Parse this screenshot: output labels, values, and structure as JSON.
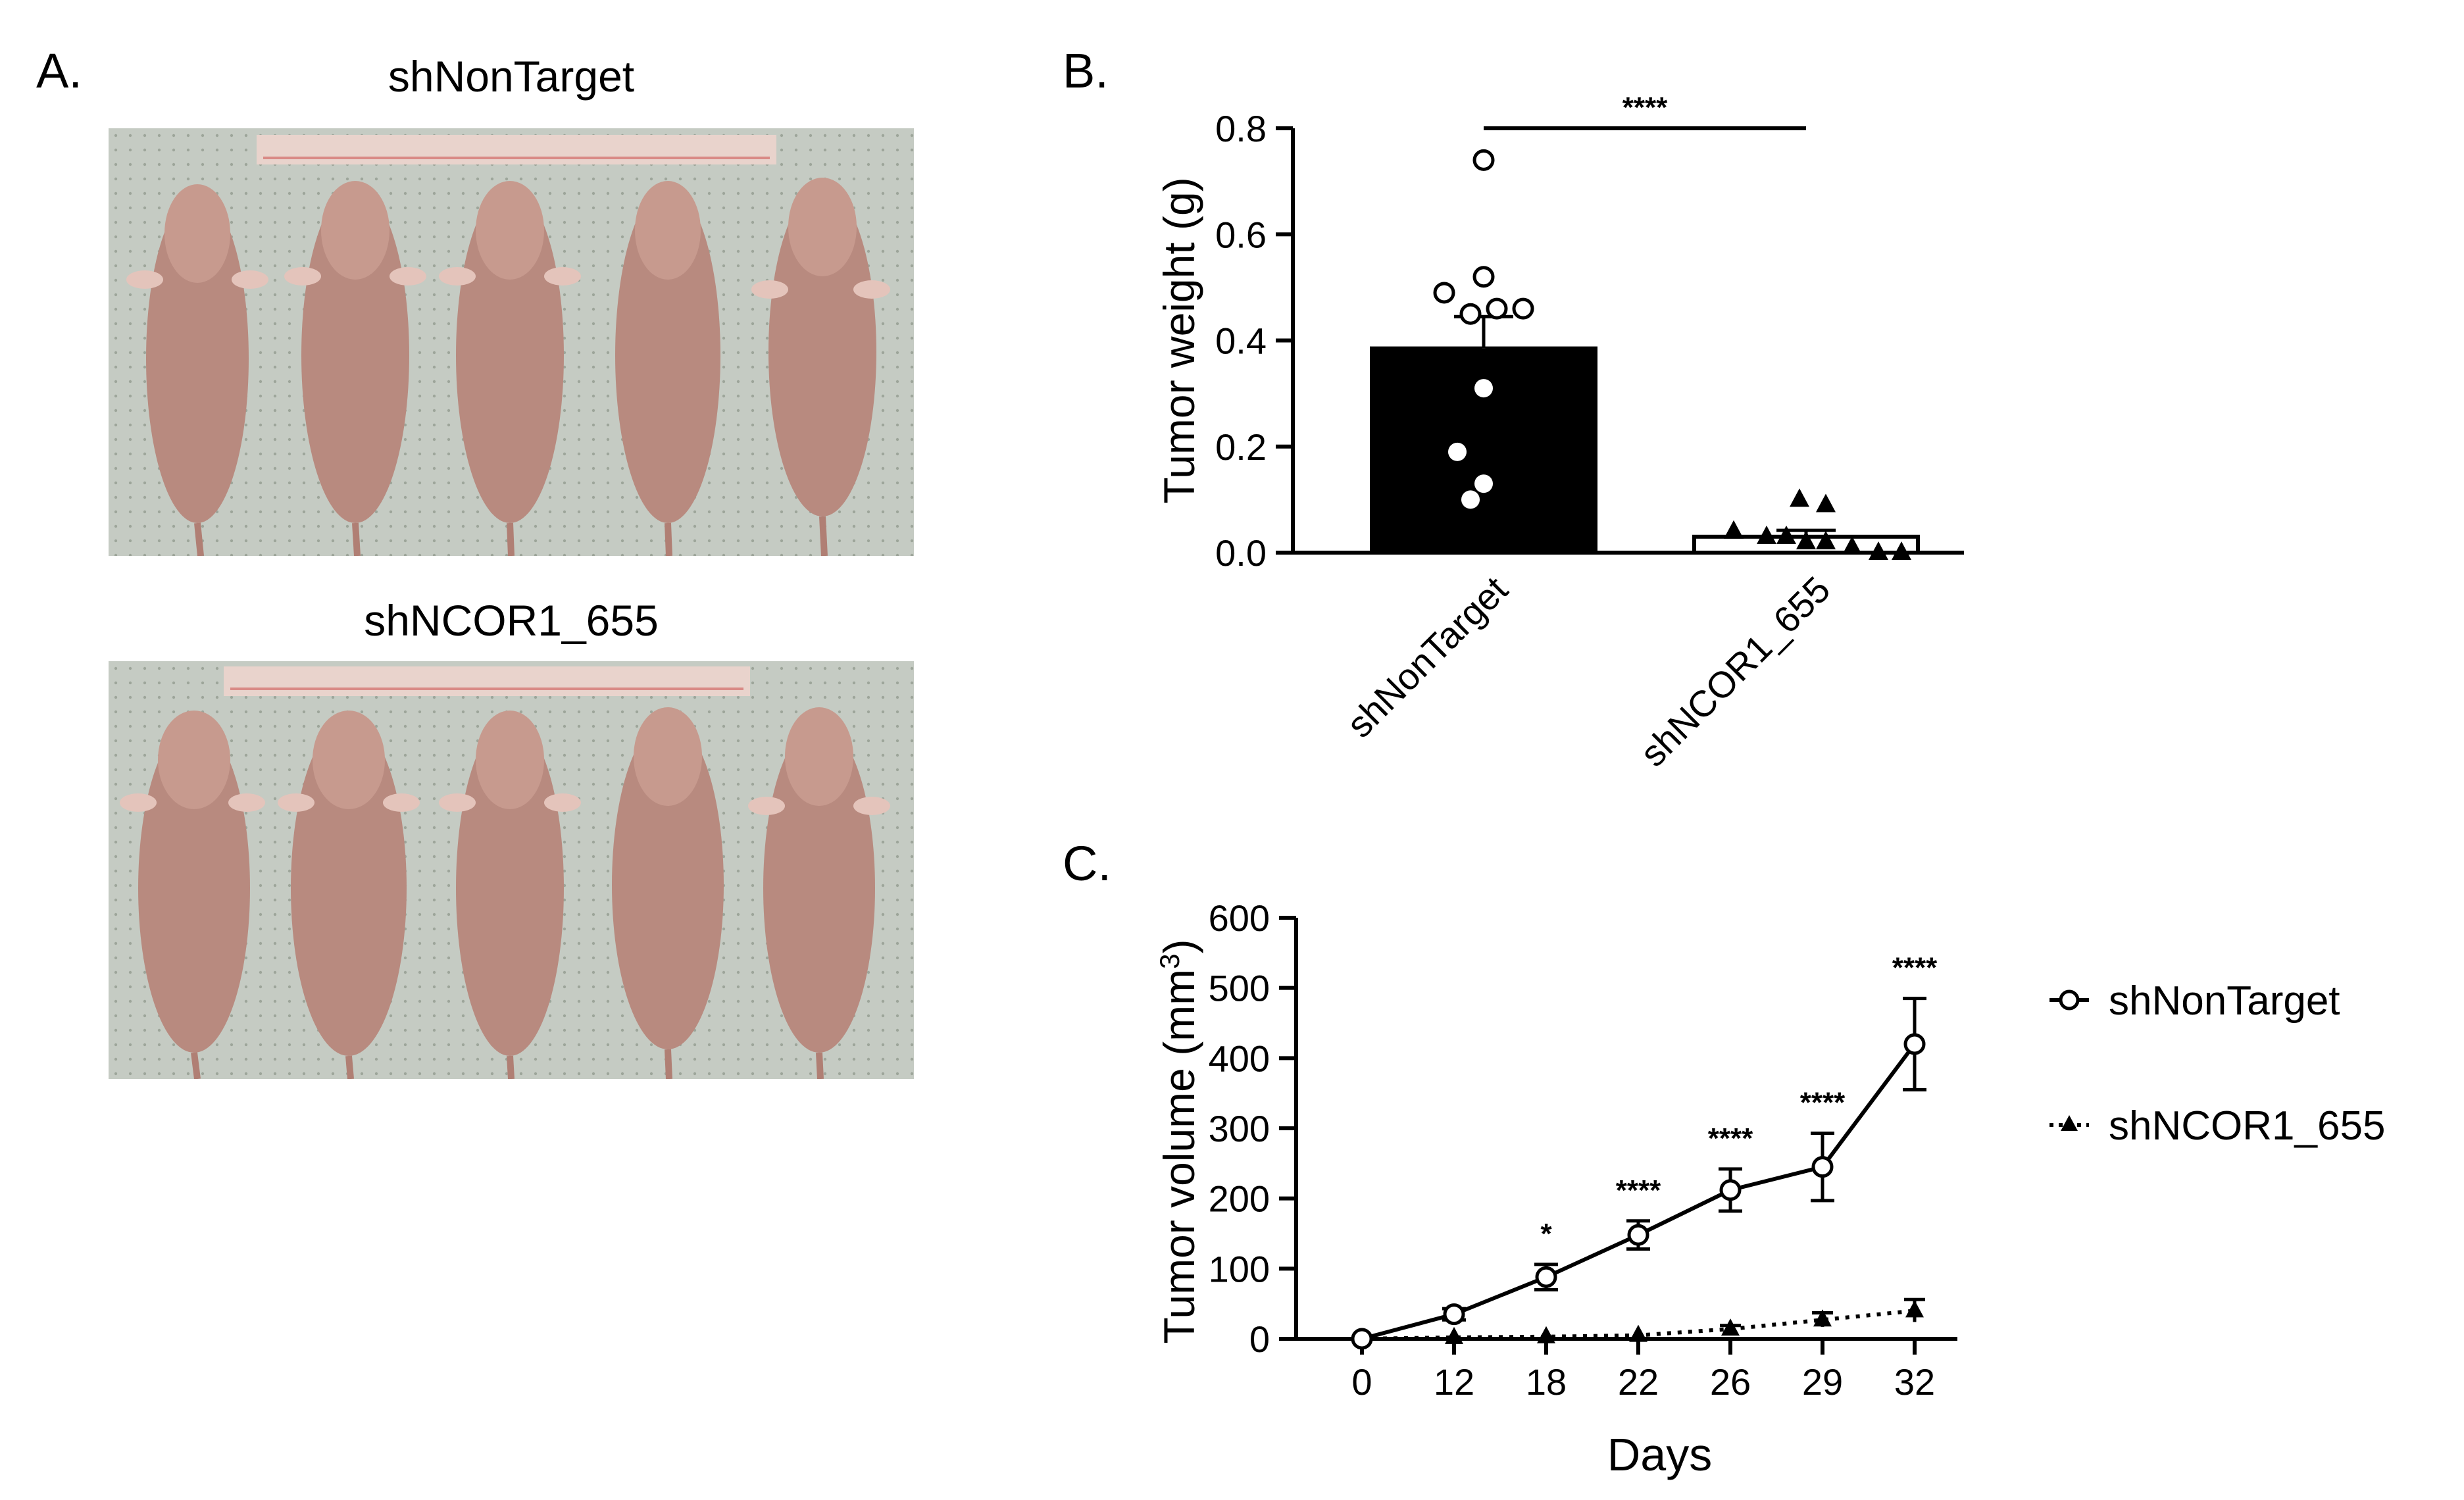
{
  "panelA": {
    "letter": "A.",
    "photos": [
      {
        "label": "shNonTarget"
      },
      {
        "label": "shNCOR1_655"
      }
    ]
  },
  "panelB": {
    "letter": "B.",
    "significance": "****",
    "chart_data": {
      "type": "bar",
      "categories": [
        "shNonTarget",
        "shNCOR1_655"
      ],
      "values": [
        0.385,
        0.03
      ],
      "errors": [
        0.06,
        0.012
      ],
      "ylabel": "Tumor weight (g)",
      "ylim": [
        0,
        0.8
      ],
      "yticks": [
        "0.0",
        "0.2",
        "0.4",
        "0.6",
        "0.8"
      ],
      "points": [
        [
          0.74,
          0.49,
          0.52,
          0.45,
          0.46,
          0.46,
          0.31,
          0.19,
          0.13,
          0.1
        ],
        [
          0.1,
          0.09,
          0.04,
          0.03,
          0.03,
          0.02,
          0.02,
          0.01,
          0.0,
          0.0
        ]
      ]
    }
  },
  "panelC": {
    "letter": "C.",
    "chart_data": {
      "type": "line",
      "x": [
        0,
        12,
        18,
        22,
        26,
        29,
        32
      ],
      "xticks": [
        "0",
        "12",
        "18",
        "22",
        "26",
        "29",
        "32"
      ],
      "xlabel": "Days",
      "ylabel": "Tumor volume (mm",
      "ylabel_sup": "3",
      "ylabel_end": ")",
      "ylim": [
        0,
        600
      ],
      "yticks": [
        "0",
        "100",
        "200",
        "300",
        "400",
        "500",
        "600"
      ],
      "series": [
        {
          "name": "shNonTarget",
          "values": [
            0,
            35,
            88,
            148,
            212,
            245,
            420
          ],
          "errors": [
            0,
            8,
            18,
            20,
            30,
            48,
            65
          ]
        },
        {
          "name": "shNCOR1_655",
          "values": [
            0,
            2,
            3,
            5,
            14,
            27,
            40
          ],
          "errors": [
            0,
            1,
            2,
            3,
            5,
            10,
            16
          ]
        }
      ],
      "annotations": [
        "",
        "",
        "*",
        "****",
        "****",
        "****",
        "****"
      ],
      "legend": "right"
    }
  }
}
